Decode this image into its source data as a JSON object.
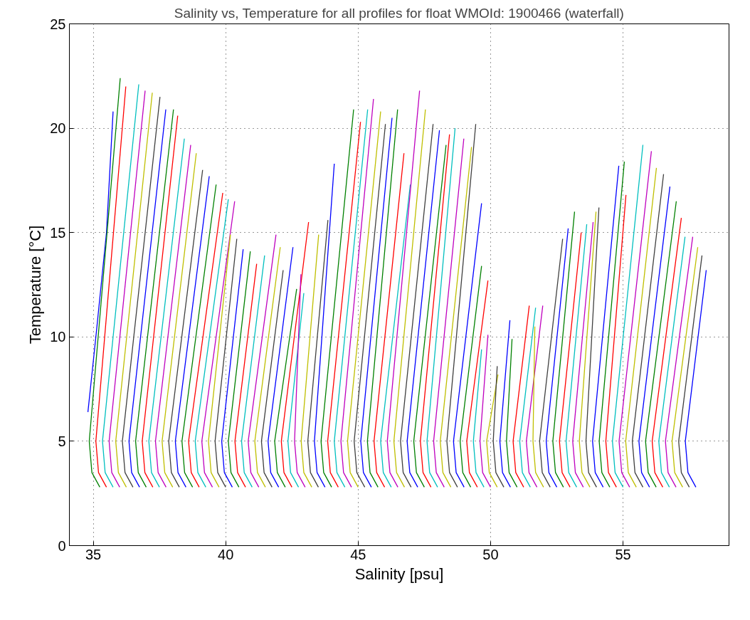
{
  "chart_data": {
    "type": "line",
    "title": "Salinity vs, Temperature for all profiles for float WMOId: 1900466 (waterfall)",
    "xlabel": "Salinity [psu]",
    "ylabel": "Temperature [°C]",
    "xlim": [
      34.1,
      59
    ],
    "xticks": [
      35,
      40,
      45,
      50,
      55
    ],
    "ylim": [
      0,
      25
    ],
    "yticks": [
      0,
      5,
      10,
      15,
      20,
      25
    ],
    "grid": true,
    "marker": "none",
    "line_style": "solid",
    "series": [
      {
        "color": "#0000ff",
        "x": [
          34.8,
          35.1,
          35.5,
          35.75
        ],
        "values": [
          6.4,
          10,
          15,
          20.8
        ]
      },
      {
        "color": "#008000",
        "x": [
          35.25,
          34.95,
          34.85,
          36.02
        ],
        "values": [
          2.8,
          3.5,
          5,
          22.4
        ]
      },
      {
        "color": "#ff0000",
        "x": [
          35.5,
          35.2,
          35.1,
          36.23
        ],
        "values": [
          2.8,
          3.5,
          5,
          22.0
        ]
      },
      {
        "color": "#00bfbf",
        "x": [
          35.75,
          35.45,
          35.35,
          36.72
        ],
        "values": [
          2.8,
          3.5,
          5,
          22.1
        ]
      },
      {
        "color": "#bf00bf",
        "x": [
          36.0,
          35.7,
          35.6,
          36.96
        ],
        "values": [
          2.8,
          3.5,
          5,
          21.8
        ]
      },
      {
        "color": "#bfbf00",
        "x": [
          36.25,
          35.95,
          35.85,
          37.23
        ],
        "values": [
          2.8,
          3.5,
          5,
          21.7
        ]
      },
      {
        "color": "#404040",
        "x": [
          36.5,
          36.2,
          36.1,
          37.52
        ],
        "values": [
          2.8,
          3.5,
          5,
          21.5
        ]
      },
      {
        "color": "#0000ff",
        "x": [
          36.75,
          36.45,
          36.35,
          37.74
        ],
        "values": [
          2.8,
          3.5,
          5,
          20.9
        ]
      },
      {
        "color": "#008000",
        "x": [
          37.0,
          36.7,
          36.6,
          38.03
        ],
        "values": [
          2.8,
          3.5,
          5,
          20.9
        ]
      },
      {
        "color": "#ff0000",
        "x": [
          37.25,
          36.95,
          36.85,
          38.19
        ],
        "values": [
          2.8,
          3.5,
          5,
          20.6
        ]
      },
      {
        "color": "#00bfbf",
        "x": [
          37.5,
          37.2,
          37.1,
          38.44
        ],
        "values": [
          2.8,
          3.5,
          5,
          19.5
        ]
      },
      {
        "color": "#bf00bf",
        "x": [
          37.75,
          37.45,
          37.35,
          38.68
        ],
        "values": [
          2.8,
          3.5,
          5,
          19.2
        ]
      },
      {
        "color": "#bfbf00",
        "x": [
          38.0,
          37.7,
          37.6,
          38.89
        ],
        "values": [
          2.8,
          3.5,
          5,
          18.8
        ]
      },
      {
        "color": "#404040",
        "x": [
          38.25,
          37.95,
          37.85,
          39.13
        ],
        "values": [
          2.8,
          3.5,
          5,
          18.0
        ]
      },
      {
        "color": "#0000ff",
        "x": [
          38.5,
          38.2,
          38.1,
          39.38
        ],
        "values": [
          2.8,
          3.5,
          5,
          17.7
        ]
      },
      {
        "color": "#008000",
        "x": [
          38.75,
          38.45,
          38.35,
          39.64
        ],
        "values": [
          2.8,
          3.5,
          5,
          17.3
        ]
      },
      {
        "color": "#ff0000",
        "x": [
          39.0,
          38.7,
          38.6,
          39.89
        ],
        "values": [
          2.8,
          3.5,
          5,
          16.9
        ]
      },
      {
        "color": "#00bfbf",
        "x": [
          39.25,
          38.95,
          38.85,
          40.1
        ],
        "values": [
          2.8,
          3.5,
          5,
          16.6
        ]
      },
      {
        "color": "#bf00bf",
        "x": [
          39.5,
          39.2,
          39.1,
          40.34
        ],
        "values": [
          2.8,
          3.5,
          5,
          16.5
        ]
      },
      {
        "color": "#bfbf00",
        "x": [
          39.75,
          39.45,
          39.35,
          40.18
        ],
        "values": [
          2.8,
          3.5,
          5,
          14.9
        ]
      },
      {
        "color": "#404040",
        "x": [
          40.0,
          39.7,
          39.6,
          40.42
        ],
        "values": [
          2.8,
          3.5,
          5,
          14.7
        ]
      },
      {
        "color": "#0000ff",
        "x": [
          40.25,
          39.95,
          39.85,
          40.66
        ],
        "values": [
          2.8,
          3.5,
          5,
          14.2
        ]
      },
      {
        "color": "#008000",
        "x": [
          40.5,
          40.2,
          40.1,
          40.93
        ],
        "values": [
          2.8,
          3.5,
          5,
          14.1
        ]
      },
      {
        "color": "#ff0000",
        "x": [
          40.75,
          40.45,
          40.35,
          41.17
        ],
        "values": [
          2.8,
          3.5,
          5,
          13.5
        ]
      },
      {
        "color": "#00bfbf",
        "x": [
          41.0,
          40.7,
          40.6,
          41.47
        ],
        "values": [
          2.8,
          3.5,
          5,
          13.9
        ]
      },
      {
        "color": "#bf00bf",
        "x": [
          41.25,
          40.95,
          40.85,
          41.9
        ],
        "values": [
          2.8,
          3.5,
          5,
          14.9
        ]
      },
      {
        "color": "#bfbf00",
        "x": [
          41.5,
          41.2,
          41.1,
          42.06
        ],
        "values": [
          2.8,
          3.5,
          5,
          14.3
        ]
      },
      {
        "color": "#404040",
        "x": [
          41.75,
          41.45,
          41.35,
          42.17
        ],
        "values": [
          2.8,
          3.5,
          5,
          13.2
        ]
      },
      {
        "color": "#0000ff",
        "x": [
          42.0,
          41.7,
          41.6,
          42.54
        ],
        "values": [
          2.8,
          3.5,
          5,
          14.3
        ]
      },
      {
        "color": "#008000",
        "x": [
          42.25,
          41.95,
          41.85,
          42.68
        ],
        "values": [
          2.8,
          3.5,
          5,
          12.3
        ]
      },
      {
        "color": "#ff0000",
        "x": [
          42.5,
          42.2,
          42.1,
          43.13
        ],
        "values": [
          2.8,
          3.5,
          5,
          15.5
        ]
      },
      {
        "color": "#00bfbf",
        "x": [
          42.75,
          42.45,
          42.35,
          42.95
        ],
        "values": [
          2.8,
          3.5,
          5,
          12.1
        ]
      },
      {
        "color": "#bf00bf",
        "x": [
          43.0,
          42.7,
          42.6,
          42.84
        ],
        "values": [
          2.8,
          3.5,
          5,
          13.0
        ]
      },
      {
        "color": "#bfbf00",
        "x": [
          43.25,
          42.95,
          42.85,
          43.51
        ],
        "values": [
          2.8,
          3.5,
          5,
          14.9
        ]
      },
      {
        "color": "#404040",
        "x": [
          43.5,
          43.2,
          43.1,
          43.86
        ],
        "values": [
          2.8,
          3.5,
          5,
          15.6
        ]
      },
      {
        "color": "#0000ff",
        "x": [
          43.75,
          43.45,
          43.35,
          44.1
        ],
        "values": [
          2.8,
          3.5,
          5,
          18.3
        ]
      },
      {
        "color": "#008000",
        "x": [
          44.0,
          43.7,
          43.6,
          44.83
        ],
        "values": [
          2.8,
          3.5,
          5,
          20.9
        ]
      },
      {
        "color": "#ff0000",
        "x": [
          44.25,
          43.95,
          43.85,
          45.09
        ],
        "values": [
          2.8,
          3.5,
          5,
          20.3
        ]
      },
      {
        "color": "#00bfbf",
        "x": [
          44.5,
          44.2,
          44.1,
          45.36
        ],
        "values": [
          2.8,
          3.5,
          5,
          20.9
        ]
      },
      {
        "color": "#bf00bf",
        "x": [
          44.75,
          44.45,
          44.35,
          45.58
        ],
        "values": [
          2.8,
          3.5,
          5,
          21.4
        ]
      },
      {
        "color": "#bfbf00",
        "x": [
          45.0,
          44.7,
          44.6,
          45.85
        ],
        "values": [
          2.8,
          3.5,
          5,
          20.8
        ]
      },
      {
        "color": "#404040",
        "x": [
          45.25,
          44.95,
          44.85,
          46.03
        ],
        "values": [
          2.8,
          3.5,
          5,
          20.2
        ]
      },
      {
        "color": "#0000ff",
        "x": [
          45.5,
          45.2,
          45.1,
          46.28
        ],
        "values": [
          2.8,
          3.5,
          5,
          20.5
        ]
      },
      {
        "color": "#008000",
        "x": [
          45.75,
          45.45,
          45.35,
          46.49
        ],
        "values": [
          2.8,
          3.5,
          5,
          20.9
        ]
      },
      {
        "color": "#ff0000",
        "x": [
          46.0,
          45.7,
          45.6,
          46.73
        ],
        "values": [
          2.8,
          3.5,
          5,
          18.8
        ]
      },
      {
        "color": "#00bfbf",
        "x": [
          46.25,
          45.95,
          45.85,
          46.97
        ],
        "values": [
          2.8,
          3.5,
          5,
          17.3
        ]
      },
      {
        "color": "#bf00bf",
        "x": [
          46.5,
          46.2,
          46.1,
          47.32
        ],
        "values": [
          2.8,
          3.5,
          5,
          21.8
        ]
      },
      {
        "color": "#bfbf00",
        "x": [
          46.75,
          46.45,
          46.35,
          47.54
        ],
        "values": [
          2.8,
          3.5,
          5,
          20.9
        ]
      },
      {
        "color": "#404040",
        "x": [
          47.0,
          46.7,
          46.6,
          47.83
        ],
        "values": [
          2.8,
          3.5,
          5,
          20.2
        ]
      },
      {
        "color": "#0000ff",
        "x": [
          47.25,
          46.95,
          46.85,
          48.07
        ],
        "values": [
          2.8,
          3.5,
          5,
          19.9
        ]
      },
      {
        "color": "#008000",
        "x": [
          47.5,
          47.2,
          47.1,
          48.32
        ],
        "values": [
          2.8,
          3.5,
          5,
          19.2
        ]
      },
      {
        "color": "#ff0000",
        "x": [
          47.75,
          47.45,
          47.35,
          48.45
        ],
        "values": [
          2.8,
          3.5,
          5,
          19.7
        ]
      },
      {
        "color": "#00bfbf",
        "x": [
          48.0,
          47.7,
          47.6,
          48.66
        ],
        "values": [
          2.8,
          3.5,
          5,
          20.0
        ]
      },
      {
        "color": "#bf00bf",
        "x": [
          48.25,
          47.95,
          47.85,
          48.99
        ],
        "values": [
          2.8,
          3.5,
          5,
          19.5
        ]
      },
      {
        "color": "#bfbf00",
        "x": [
          48.5,
          48.2,
          48.1,
          49.28
        ],
        "values": [
          2.8,
          3.5,
          5,
          19.1
        ]
      },
      {
        "color": "#404040",
        "x": [
          48.75,
          48.45,
          48.35,
          49.44
        ],
        "values": [
          2.8,
          3.5,
          5,
          20.2
        ]
      },
      {
        "color": "#0000ff",
        "x": [
          49.0,
          48.7,
          48.6,
          49.66
        ],
        "values": [
          2.8,
          3.5,
          5,
          16.4
        ]
      },
      {
        "color": "#008000",
        "x": [
          49.25,
          48.95,
          48.85,
          49.66
        ],
        "values": [
          2.8,
          3.5,
          5,
          13.4
        ]
      },
      {
        "color": "#ff0000",
        "x": [
          49.5,
          49.2,
          49.1,
          49.9
        ],
        "values": [
          2.8,
          3.5,
          5,
          12.7
        ]
      },
      {
        "color": "#00bfbf",
        "x": [
          49.75,
          49.45,
          49.35,
          49.66
        ],
        "values": [
          2.8,
          3.5,
          5,
          9.4
        ]
      },
      {
        "color": "#bf00bf",
        "x": [
          50.0,
          49.7,
          49.6,
          49.9
        ],
        "values": [
          2.8,
          3.5,
          5,
          10.1
        ]
      },
      {
        "color": "#bfbf00",
        "x": [
          50.25,
          49.95,
          49.85,
          50.28
        ],
        "values": [
          2.8,
          3.5,
          5,
          8.2
        ]
      },
      {
        "color": "#404040",
        "x": [
          50.5,
          50.2,
          50.1,
          50.25
        ],
        "values": [
          2.8,
          3.5,
          5,
          8.6
        ]
      },
      {
        "color": "#0000ff",
        "x": [
          50.75,
          50.45,
          50.35,
          50.73
        ],
        "values": [
          2.8,
          3.5,
          5,
          10.8
        ]
      },
      {
        "color": "#008000",
        "x": [
          51.0,
          50.7,
          50.6,
          50.81
        ],
        "values": [
          2.8,
          3.5,
          5,
          9.9
        ]
      },
      {
        "color": "#ff0000",
        "x": [
          51.25,
          50.95,
          50.85,
          51.46
        ],
        "values": [
          2.8,
          3.5,
          5,
          11.5
        ]
      },
      {
        "color": "#00bfbf",
        "x": [
          51.5,
          51.2,
          51.1,
          51.7
        ],
        "values": [
          2.8,
          3.5,
          5,
          11.4
        ]
      },
      {
        "color": "#bf00bf",
        "x": [
          51.75,
          51.45,
          51.35,
          51.97
        ],
        "values": [
          2.8,
          3.5,
          5,
          11.5
        ]
      },
      {
        "color": "#bfbf00",
        "x": [
          52.0,
          51.7,
          51.6,
          51.67
        ],
        "values": [
          2.8,
          3.5,
          5,
          10.5
        ]
      },
      {
        "color": "#404040",
        "x": [
          52.25,
          51.95,
          51.85,
          52.72
        ],
        "values": [
          2.8,
          3.5,
          5,
          14.7
        ]
      },
      {
        "color": "#0000ff",
        "x": [
          52.5,
          52.2,
          52.1,
          52.93
        ],
        "values": [
          2.8,
          3.5,
          5,
          15.2
        ]
      },
      {
        "color": "#008000",
        "x": [
          52.75,
          52.45,
          52.35,
          53.17
        ],
        "values": [
          2.8,
          3.5,
          5,
          16.0
        ]
      },
      {
        "color": "#ff0000",
        "x": [
          53.0,
          52.7,
          52.6,
          53.42
        ],
        "values": [
          2.8,
          3.5,
          5,
          15.0
        ]
      },
      {
        "color": "#00bfbf",
        "x": [
          53.25,
          52.95,
          52.85,
          53.63
        ],
        "values": [
          2.8,
          3.5,
          5,
          15.4
        ]
      },
      {
        "color": "#bf00bf",
        "x": [
          53.5,
          53.2,
          53.1,
          53.87
        ],
        "values": [
          2.8,
          3.5,
          5,
          15.5
        ]
      },
      {
        "color": "#bfbf00",
        "x": [
          53.75,
          53.45,
          53.35,
          53.98
        ],
        "values": [
          2.8,
          3.5,
          5,
          16.0
        ]
      },
      {
        "color": "#404040",
        "x": [
          54.0,
          53.7,
          53.6,
          54.09
        ],
        "values": [
          2.8,
          3.5,
          5,
          16.2
        ]
      },
      {
        "color": "#0000ff",
        "x": [
          54.25,
          53.95,
          53.85,
          54.84
        ],
        "values": [
          2.8,
          3.5,
          5,
          18.2
        ]
      },
      {
        "color": "#008000",
        "x": [
          54.5,
          54.2,
          54.1,
          55.05
        ],
        "values": [
          2.8,
          3.5,
          5,
          18.4
        ]
      },
      {
        "color": "#ff0000",
        "x": [
          54.75,
          54.45,
          54.35,
          55.11
        ],
        "values": [
          2.8,
          3.5,
          5,
          16.8
        ]
      },
      {
        "color": "#00bfbf",
        "x": [
          55.0,
          54.7,
          54.6,
          55.75
        ],
        "values": [
          2.8,
          3.5,
          5,
          19.2
        ]
      },
      {
        "color": "#bf00bf",
        "x": [
          55.25,
          54.95,
          54.85,
          56.07
        ],
        "values": [
          2.8,
          3.5,
          5,
          18.9
        ]
      },
      {
        "color": "#bfbf00",
        "x": [
          55.5,
          55.2,
          55.1,
          56.26
        ],
        "values": [
          2.8,
          3.5,
          5,
          18.1
        ]
      },
      {
        "color": "#404040",
        "x": [
          55.75,
          55.45,
          55.35,
          56.53
        ],
        "values": [
          2.8,
          3.5,
          5,
          17.8
        ]
      },
      {
        "color": "#0000ff",
        "x": [
          56.0,
          55.7,
          55.6,
          56.77
        ],
        "values": [
          2.8,
          3.5,
          5,
          17.2
        ]
      },
      {
        "color": "#008000",
        "x": [
          56.25,
          55.95,
          55.85,
          57.01
        ],
        "values": [
          2.8,
          3.5,
          5,
          16.5
        ]
      },
      {
        "color": "#ff0000",
        "x": [
          56.5,
          56.2,
          56.1,
          57.2
        ],
        "values": [
          2.8,
          3.5,
          5,
          15.7
        ]
      },
      {
        "color": "#00bfbf",
        "x": [
          56.75,
          56.45,
          56.35,
          57.34
        ],
        "values": [
          2.8,
          3.5,
          5,
          14.8
        ]
      },
      {
        "color": "#bf00bf",
        "x": [
          57.0,
          56.7,
          56.6,
          57.63
        ],
        "values": [
          2.8,
          3.5,
          5,
          14.8
        ]
      },
      {
        "color": "#bfbf00",
        "x": [
          57.25,
          56.95,
          56.85,
          57.82
        ],
        "values": [
          2.8,
          3.5,
          5,
          14.3
        ]
      },
      {
        "color": "#404040",
        "x": [
          57.5,
          57.2,
          57.1,
          57.98
        ],
        "values": [
          2.8,
          3.5,
          5,
          13.9
        ]
      },
      {
        "color": "#0000ff",
        "x": [
          57.75,
          57.45,
          57.35,
          58.14
        ],
        "values": [
          2.8,
          3.5,
          5,
          13.2
        ]
      }
    ]
  }
}
